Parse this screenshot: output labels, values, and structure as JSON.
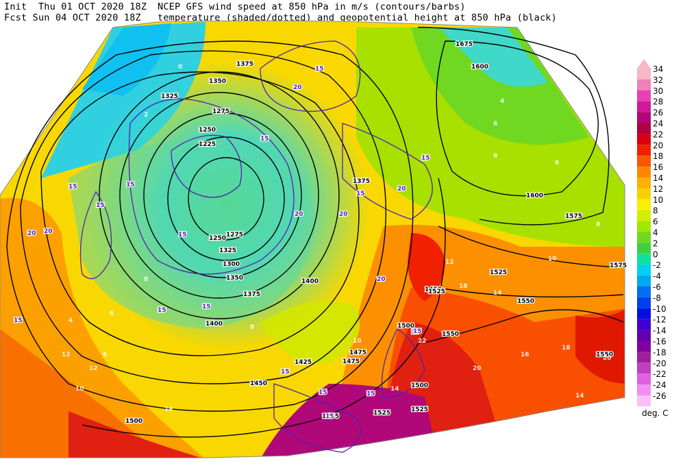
{
  "header": {
    "init": "Init  Thu 01 OCT 2020 18Z",
    "fcst": "Fcst Sun 04 OCT 2020 18Z",
    "line1": "NCEP GFS wind speed at 850 hPa in m/s (contours/barbs)",
    "line2": "temperature (shaded/dotted) and geopotential height at 850 hPa (black)"
  },
  "legend": {
    "unit": "deg. C",
    "levels": [
      {
        "value": "34",
        "color": "#f5b8c4"
      },
      {
        "value": "32",
        "color": "#f080b8"
      },
      {
        "value": "30",
        "color": "#e840b0"
      },
      {
        "value": "28",
        "color": "#d01898"
      },
      {
        "value": "26",
        "color": "#b00878"
      },
      {
        "value": "24",
        "color": "#b00040"
      },
      {
        "value": "22",
        "color": "#d80010"
      },
      {
        "value": "20",
        "color": "#f02000"
      },
      {
        "value": "18",
        "color": "#f85800"
      },
      {
        "value": "16",
        "color": "#fc8800"
      },
      {
        "value": "14",
        "color": "#fcb000"
      },
      {
        "value": "12",
        "color": "#f8d000"
      },
      {
        "value": "10",
        "color": "#f8f000"
      },
      {
        "value": "8",
        "color": "#d0f000"
      },
      {
        "value": "6",
        "color": "#a0e800"
      },
      {
        "value": "4",
        "color": "#70d820"
      },
      {
        "value": "2",
        "color": "#40d040"
      },
      {
        "value": "0",
        "color": "#10e0a0"
      },
      {
        "value": "-2",
        "color": "#00d0f0"
      },
      {
        "value": "-4",
        "color": "#00a8f0"
      },
      {
        "value": "-6",
        "color": "#0070f0"
      },
      {
        "value": "-8",
        "color": "#0040f0"
      },
      {
        "value": "-10",
        "color": "#0010e0"
      },
      {
        "value": "-12",
        "color": "#4000d0"
      },
      {
        "value": "-14",
        "color": "#6000b0"
      },
      {
        "value": "-16",
        "color": "#8000a0"
      },
      {
        "value": "-18",
        "color": "#a020a0"
      },
      {
        "value": "-20",
        "color": "#c040c0"
      },
      {
        "value": "-22",
        "color": "#e060e0"
      },
      {
        "value": "-24",
        "color": "#f090f0"
      },
      {
        "value": "-26",
        "color": "#f8c0f8"
      }
    ]
  },
  "map": {
    "height_labels": [
      "1275",
      "1250",
      "1225",
      "1250",
      "1275",
      "1300",
      "1325",
      "1350",
      "1375",
      "1325",
      "1350",
      "1375",
      "1400",
      "1425",
      "1450",
      "1475",
      "1500",
      "1525",
      "1550",
      "1575",
      "1600",
      "1575",
      "1550",
      "1525",
      "1500",
      "1475",
      "1450",
      "1400",
      "1375",
      "1600",
      "1675",
      "1500",
      "1475",
      "1525",
      "1550",
      "1525"
    ],
    "wind_labels": [
      "15",
      "20",
      "15",
      "15",
      "20",
      "15",
      "15",
      "20",
      "15",
      "15",
      "20",
      "15",
      "15",
      "20",
      "15",
      "15",
      "15",
      "15",
      "20",
      "15",
      "15",
      "15",
      "20",
      "15"
    ],
    "temp_labels": [
      "8",
      "6",
      "4",
      "6",
      "8",
      "10",
      "12",
      "14",
      "16",
      "18",
      "20",
      "22",
      "2",
      "0",
      "4",
      "6",
      "8",
      "10",
      "12",
      "14",
      "16",
      "18",
      "20",
      "14",
      "12",
      "10",
      "8",
      "6"
    ]
  }
}
